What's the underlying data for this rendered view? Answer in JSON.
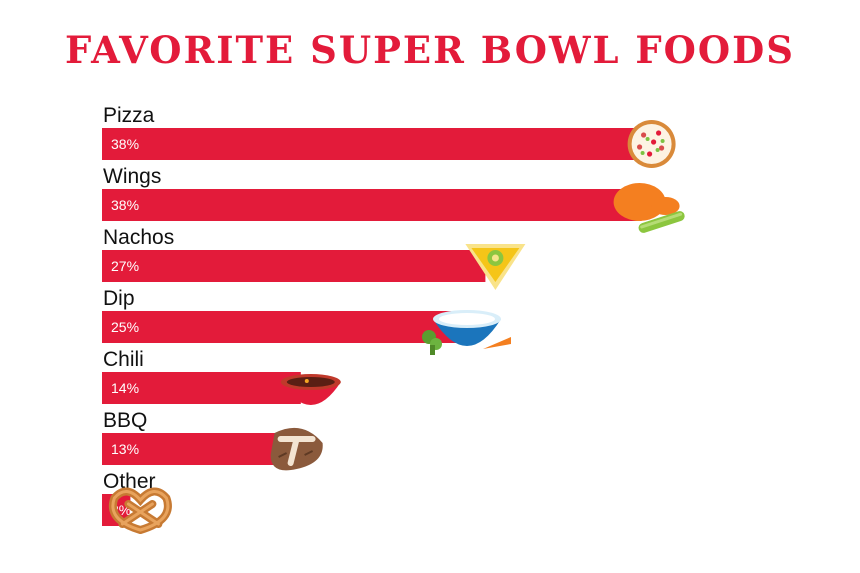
{
  "title": "FAVORITE SUPER BOWL FOODS",
  "colors": {
    "bar": "#e31b3a",
    "title": "#e31b3a",
    "label": "#111111"
  },
  "chart_data": {
    "type": "bar",
    "orientation": "horizontal",
    "title": "FAVORITE SUPER BOWL FOODS",
    "categories": [
      "Pizza",
      "Wings",
      "Nachos",
      "Dip",
      "Chili",
      "BBQ",
      "Other"
    ],
    "values": [
      38,
      38,
      27,
      25,
      14,
      13,
      2
    ],
    "value_labels": [
      "38%",
      "38%",
      "27%",
      "25%",
      "14%",
      "13%",
      "2%"
    ],
    "unit": "%",
    "icons": [
      "pizza-icon",
      "chicken-wing-icon",
      "nacho-chip-icon",
      "dip-bowl-icon",
      "chili-bowl-icon",
      "steak-icon",
      "pretzel-icon"
    ],
    "grid": false,
    "legend": "none"
  }
}
